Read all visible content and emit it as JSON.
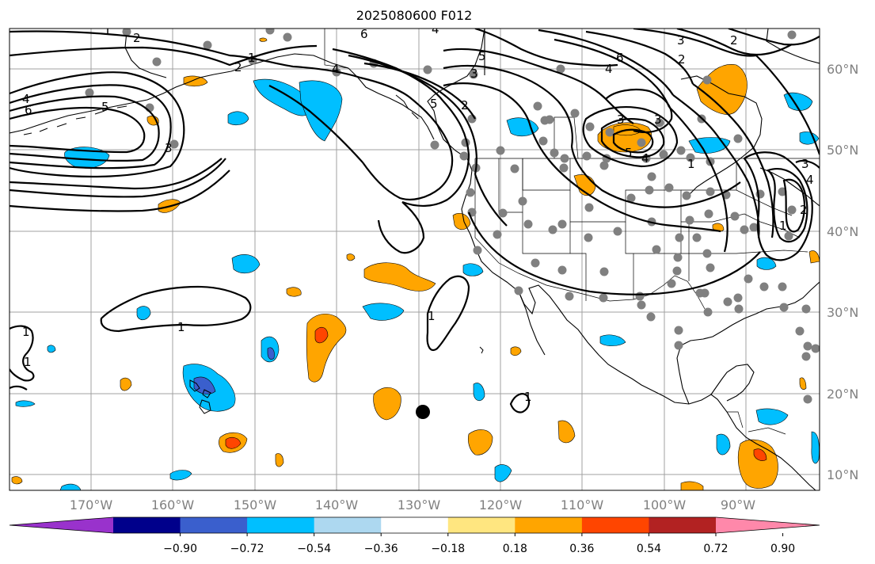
{
  "title": "2025080600 F012",
  "lon_labels": [
    "170°W",
    "160°W",
    "150°W",
    "140°W",
    "130°W",
    "120°W",
    "110°W",
    "100°W",
    "90°W"
  ],
  "lat_labels": [
    "60°N",
    "50°N",
    "40°N",
    "30°N",
    "20°N",
    "10°N"
  ],
  "contour_labels": [
    "1",
    "2",
    "4",
    "6",
    "5",
    "3",
    "2",
    "1",
    "6",
    "5",
    "4",
    "3",
    "2",
    "5",
    "6",
    "4",
    "3",
    "2",
    "4",
    "5",
    "3",
    "4",
    "3",
    "2",
    "1",
    "1",
    "1",
    "2",
    "3",
    "4",
    "1",
    "1",
    "1",
    "1"
  ],
  "colorbar": {
    "colors": [
      "#9932cc",
      "#00008b",
      "#3a5fcd",
      "#00bfff",
      "#add8f0",
      "#ffffff",
      "#ffe680",
      "#ffa500",
      "#ff4500",
      "#b22222",
      "#ff88aa"
    ],
    "tick_labels": [
      "−0.90",
      "−0.72",
      "−0.54",
      "−0.36",
      "−0.18",
      "0.18",
      "0.36",
      "0.54",
      "0.72",
      "0.90"
    ]
  },
  "colors": {
    "blue": "#00bfff",
    "light_blue": "#add8f0",
    "orange": "#ffa500",
    "red_orange": "#ff4500",
    "mid_blue": "#3a5fcd",
    "station_gray": "#808080",
    "grid": "#a0a0a0"
  }
}
